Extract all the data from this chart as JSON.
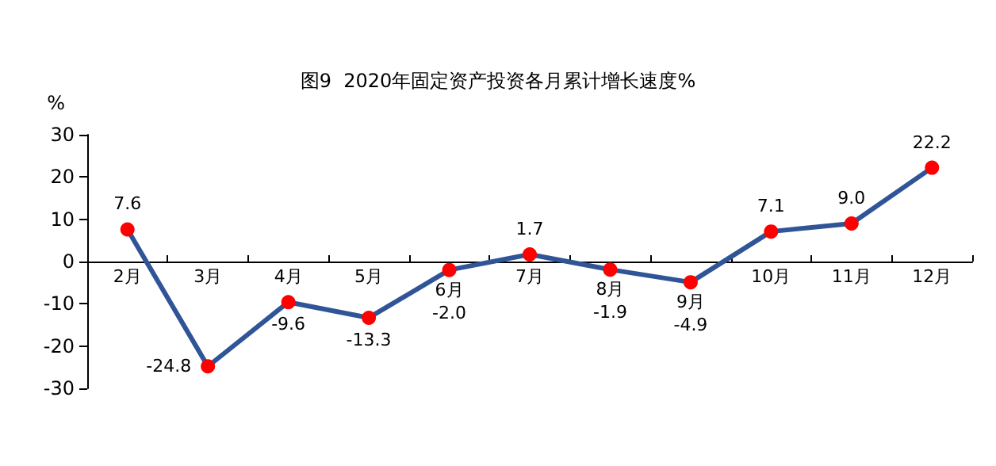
{
  "chart_data": {
    "type": "line",
    "title": "图9  2020年固定资产投资各月累计增长速度%",
    "ylabel": "%",
    "categories": [
      "2月",
      "3月",
      "4月",
      "5月",
      "6月",
      "7月",
      "8月",
      "9月",
      "10月",
      "11月",
      "12月"
    ],
    "series": [
      {
        "color": "#2f5597",
        "colors": [
          "#ff0000",
          "#ff0000",
          "#ff0000",
          "#ff0000",
          "#ff0000",
          "#ff0000",
          "#ff0000",
          "#ff0000",
          "#ff0000",
          "#ff0000",
          "#ff0000"
        ],
        "values": [
          7.6,
          -24.8,
          -9.6,
          -13.3,
          -2.0,
          1.7,
          -1.9,
          -4.9,
          7.1,
          9.0,
          22.2
        ],
        "value_labels": [
          "7.6",
          "-24.8",
          "-9.6",
          "-13.3",
          "-2.0",
          "1.7",
          "-1.9",
          "-4.9",
          "7.1",
          "9.0",
          "22.2"
        ]
      }
    ],
    "ylim": [
      -30,
      30
    ],
    "yticks": [
      -30,
      -20,
      -10,
      0,
      10,
      20,
      30
    ],
    "marker": "circle",
    "line_style": "solid"
  }
}
